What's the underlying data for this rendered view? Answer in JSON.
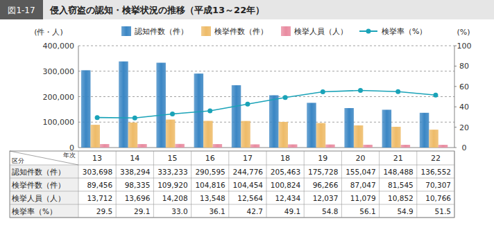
{
  "chart_data": {
    "type": "bar",
    "figure_label": "図1-17",
    "title": "侵入窃盗の認知・検挙状況の推移（平成13～22年）",
    "y_label": "(件・人)",
    "y2_label": "(%)",
    "table_header": {
      "row": "区分",
      "col": "年次"
    },
    "categories": [
      "13",
      "14",
      "15",
      "16",
      "17",
      "18",
      "19",
      "20",
      "21",
      "22"
    ],
    "series": [
      {
        "name": "認知件数（件）",
        "color": "#3a86c4",
        "type": "bar",
        "values": [
          303698,
          338294,
          333233,
          290595,
          244776,
          205463,
          175728,
          155047,
          148488,
          136552
        ],
        "value_labels": [
          "303,698",
          "338,294",
          "333,233",
          "290,595",
          "244,776",
          "205,463",
          "175,728",
          "155,047",
          "148,488",
          "136,552"
        ]
      },
      {
        "name": "検挙件数（件）",
        "color": "#eebb68",
        "type": "bar",
        "values": [
          89456,
          98335,
          109920,
          104816,
          104454,
          100824,
          96266,
          87047,
          81545,
          70307
        ],
        "value_labels": [
          "89,456",
          "98,335",
          "109,920",
          "104,816",
          "104,454",
          "100,824",
          "96,266",
          "87,047",
          "81,545",
          "70,307"
        ]
      },
      {
        "name": "検挙人員（人）",
        "color": "#e98ba0",
        "type": "bar",
        "values": [
          13712,
          13696,
          14208,
          13548,
          12564,
          12434,
          12037,
          11079,
          10852,
          10766
        ],
        "value_labels": [
          "13,712",
          "13,696",
          "14,208",
          "13,548",
          "12,564",
          "12,434",
          "12,037",
          "11,079",
          "10,852",
          "10,766"
        ]
      },
      {
        "name": "検挙率（%）",
        "color": "#1aa3b8",
        "type": "line",
        "marker": "circle",
        "axis": "y2",
        "values": [
          29.5,
          29.1,
          33.0,
          36.1,
          42.7,
          49.1,
          54.8,
          56.1,
          54.9,
          51.5
        ],
        "value_labels": [
          "29.5",
          "29.1",
          "33.0",
          "36.1",
          "42.7",
          "49.1",
          "54.8",
          "56.1",
          "54.9",
          "51.5"
        ]
      }
    ],
    "ylim": [
      0,
      400000
    ],
    "yticks": [
      0,
      {
        "value": 100000,
        "label": "100,000"
      },
      {
        "value": 200000,
        "label": "200,000"
      },
      {
        "value": 300000,
        "label": "300,000"
      },
      {
        "value": 400000,
        "label": "400,000"
      }
    ],
    "y2lim": [
      0,
      100
    ],
    "y2ticks": [
      0,
      20,
      40,
      60,
      80,
      100
    ],
    "grid": true,
    "legend": "top"
  }
}
